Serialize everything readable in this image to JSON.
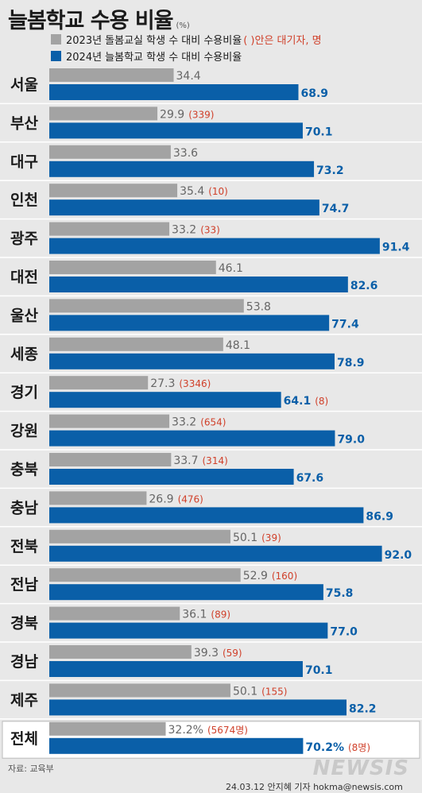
{
  "title": "늘봄학교 수용 비율",
  "title_unit": "(%)",
  "legend": {
    "series_2023": "2023년 돌봄교실 학생 수 대비 수용비율",
    "note": "( )안은 대기자, 명",
    "series_2024": "2024년 늘봄학교 학생 수 대비 수용비율"
  },
  "colors": {
    "gray": "#a3a3a3",
    "blue": "#0a5fa8",
    "wait": "#d0402a",
    "background": "#e8e8e8"
  },
  "chart_data": {
    "type": "bar",
    "orientation": "horizontal",
    "title": "늘봄학교 수용 비율",
    "unit": "%",
    "xlim": [
      0,
      100
    ],
    "categories": [
      "서울",
      "부산",
      "대구",
      "인천",
      "광주",
      "대전",
      "울산",
      "세종",
      "경기",
      "강원",
      "충북",
      "충남",
      "전북",
      "전남",
      "경북",
      "경남",
      "제주",
      "전체"
    ],
    "series": [
      {
        "name": "2023년 돌봄교실 학생 수 대비 수용비율",
        "values": [
          34.4,
          29.9,
          33.6,
          35.4,
          33.2,
          46.1,
          53.8,
          48.1,
          27.3,
          33.2,
          33.7,
          26.9,
          50.1,
          52.9,
          36.1,
          39.3,
          50.1,
          32.2
        ],
        "labels": [
          "34.4",
          "29.9",
          "33.6",
          "35.4",
          "33.2",
          "46.1",
          "53.8",
          "48.1",
          "27.3",
          "33.2",
          "33.7",
          "26.9",
          "50.1",
          "52.9",
          "36.1",
          "39.3",
          "50.1",
          "32.2%"
        ],
        "waitlist": [
          "",
          "(339)",
          "",
          "(10)",
          "(33)",
          "",
          "",
          "",
          "(3346)",
          "(654)",
          "(314)",
          "(476)",
          "(39)",
          "(160)",
          "(89)",
          "(59)",
          "(155)",
          "(5674명)"
        ]
      },
      {
        "name": "2024년 늘봄학교 학생 수 대비 수용비율",
        "values": [
          68.9,
          70.1,
          73.2,
          74.7,
          91.4,
          82.6,
          77.4,
          78.9,
          64.1,
          79.0,
          67.6,
          86.9,
          92.0,
          75.8,
          77.0,
          70.1,
          82.2,
          70.2
        ],
        "labels": [
          "68.9",
          "70.1",
          "73.2",
          "74.7",
          "91.4",
          "82.6",
          "77.4",
          "78.9",
          "64.1",
          "79.0",
          "67.6",
          "86.9",
          "92.0",
          "75.8",
          "77.0",
          "70.1",
          "82.2",
          "70.2%"
        ],
        "waitlist": [
          "",
          "",
          "",
          "",
          "",
          "",
          "",
          "",
          "(8)",
          "",
          "",
          "",
          "",
          "",
          "",
          "",
          "",
          "(8명)"
        ]
      }
    ]
  },
  "source": "자료: 교육부",
  "credit": "24.03.12 안지혜 기자 hokma@newsis.com",
  "watermark": "NEWSIS"
}
